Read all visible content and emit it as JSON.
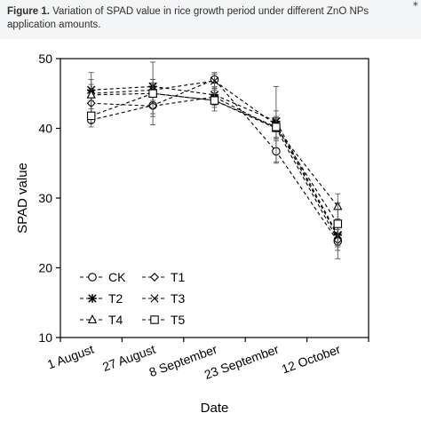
{
  "caption": {
    "label": "Figure 1.",
    "text": "Variation of SPAD value in rice growth period under different ZnO NPs application amounts."
  },
  "chart_data": {
    "type": "line",
    "categories": [
      "1 August",
      "27 August",
      "8 September",
      "23 September",
      "12 October"
    ],
    "xlabel": "Date",
    "ylabel": "SPAD value",
    "ylim": [
      10,
      50
    ],
    "yticks": [
      10,
      20,
      30,
      40,
      50
    ],
    "grid": false,
    "legend": "bottom-left",
    "series": [
      {
        "name": "CK",
        "marker": "circle",
        "values": [
          41.2,
          43.3,
          47.0,
          36.7,
          23.8
        ],
        "errors": [
          1.0,
          1.2,
          1.0,
          1.5,
          2.5
        ]
      },
      {
        "name": "T1",
        "marker": "diamond",
        "values": [
          43.6,
          43.2,
          44.5,
          40.0,
          24.0
        ],
        "errors": [
          1.5,
          1.5,
          1.2,
          1.5,
          1.5
        ]
      },
      {
        "name": "T2",
        "marker": "asterisk",
        "values": [
          45.5,
          46.0,
          44.8,
          41.0,
          24.7
        ],
        "errors": [
          1.5,
          1.0,
          1.0,
          1.5,
          1.5
        ]
      },
      {
        "name": "T3",
        "marker": "x",
        "values": [
          45.0,
          45.5,
          46.8,
          40.5,
          24.5
        ],
        "errors": [
          3.0,
          1.5,
          1.0,
          5.5,
          1.5
        ]
      },
      {
        "name": "T4",
        "marker": "triangle",
        "values": [
          44.8,
          45.0,
          44.0,
          40.0,
          28.8
        ],
        "errors": [
          1.5,
          1.5,
          1.0,
          1.5,
          1.8
        ]
      },
      {
        "name": "T5",
        "marker": "square",
        "values": [
          41.8,
          45.0,
          44.0,
          40.2,
          26.3
        ],
        "errors": [
          1.0,
          4.5,
          1.5,
          1.5,
          3.0
        ]
      }
    ]
  }
}
